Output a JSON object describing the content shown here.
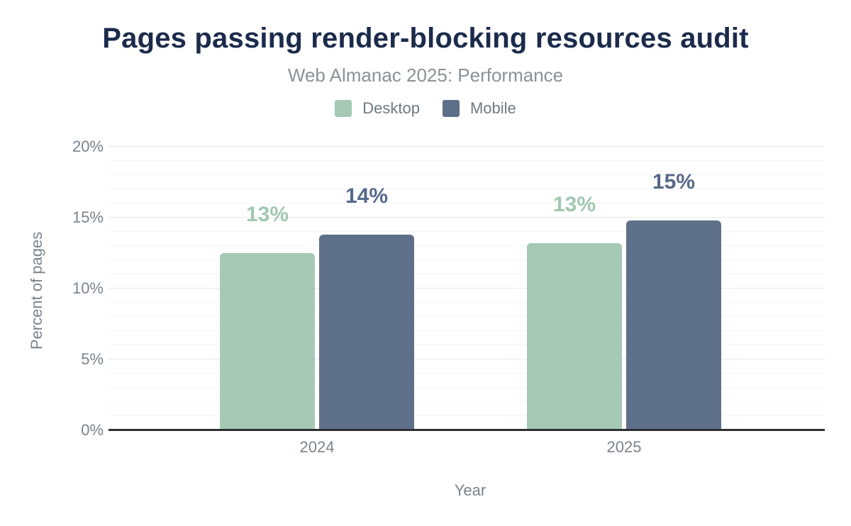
{
  "chart_data": {
    "type": "bar",
    "title": "Pages passing render-blocking resources audit",
    "subtitle": "Web Almanac 2025: Performance",
    "xlabel": "Year",
    "ylabel": "Percent of pages",
    "categories": [
      "2024",
      "2025"
    ],
    "series": [
      {
        "name": "Desktop",
        "color": "#a5c9b5",
        "label_color": "#a1c7b1",
        "values": [
          12.5,
          13.2
        ],
        "labels": [
          "13%",
          "13%"
        ]
      },
      {
        "name": "Mobile",
        "color": "#5e7089",
        "label_color": "#56688a",
        "values": [
          13.8,
          14.8
        ],
        "labels": [
          "14%",
          "15%"
        ]
      }
    ],
    "ylim": [
      0,
      20
    ],
    "y_ticks": [
      {
        "label": "0%",
        "value": 0
      },
      {
        "label": "5%",
        "value": 5
      },
      {
        "label": "10%",
        "value": 10
      },
      {
        "label": "15%",
        "value": 15
      },
      {
        "label": "20%",
        "value": 20
      }
    ],
    "grid": {
      "horizontal": true,
      "minor_step_pct": 1,
      "major_step_pct": 5
    },
    "legend_position": "top",
    "value_label_position": "above bars"
  },
  "colors": {
    "background": "#ffffff",
    "title_text": "#1b2b4b",
    "subtitle_text": "#8b9196",
    "legend_text": "#6f7880",
    "axis_text": "#7b838b",
    "axis_line": "#2f2f2f",
    "grid_minor": "#f4f4f4",
    "grid_major": "#e8e8e8"
  }
}
